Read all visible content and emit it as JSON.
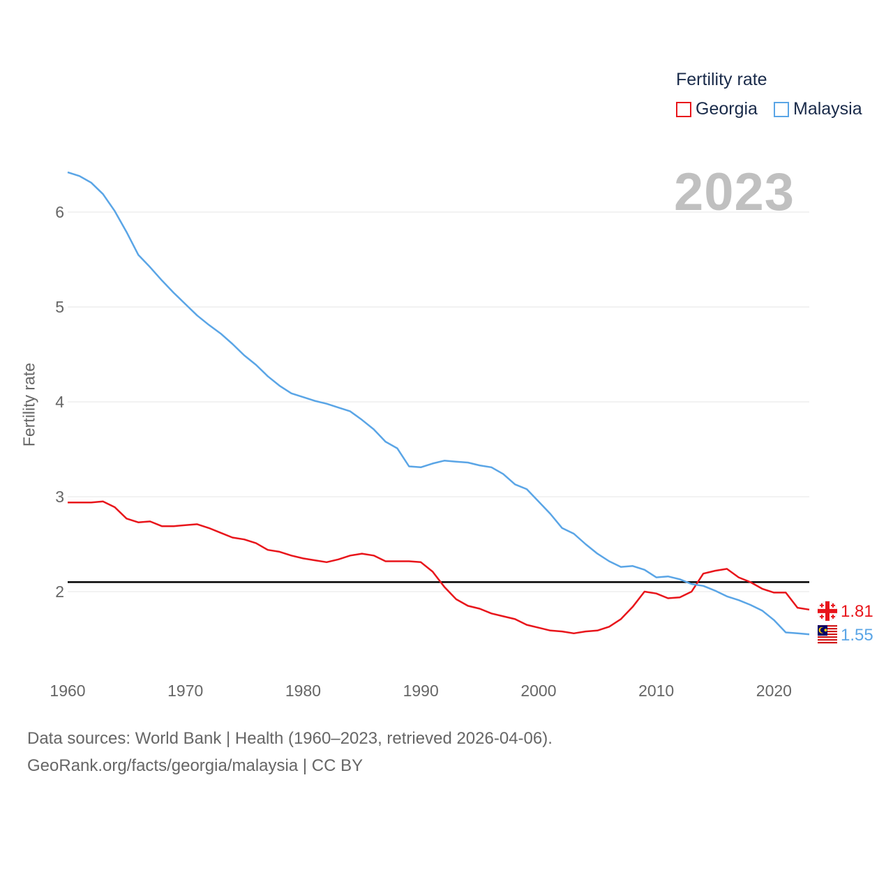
{
  "legend": {
    "title": "Fertility rate",
    "items": [
      {
        "label": "Georgia",
        "color": "#e8151b"
      },
      {
        "label": "Malaysia",
        "color": "#5aa5e6"
      }
    ]
  },
  "year_label": "2023",
  "footer": {
    "line1": "Data sources: World Bank | Health (1960–2023, retrieved 2026-04-06).",
    "line2": "GeoRank.org/facts/georgia/malaysia | CC BY"
  },
  "chart_data": {
    "type": "line",
    "title": "Fertility rate",
    "xlabel": "",
    "ylabel": "Fertility rate",
    "xlim": [
      1960,
      2023
    ],
    "ylim": [
      1.3,
      6.5
    ],
    "x_ticks": [
      "1960",
      "1970",
      "1980",
      "1990",
      "2000",
      "2010",
      "2020"
    ],
    "y_ticks": [
      "2",
      "3",
      "4",
      "5",
      "6"
    ],
    "grid": true,
    "reference_line": {
      "y": 2.1,
      "color": "#000000"
    },
    "x": [
      1960,
      1961,
      1962,
      1963,
      1964,
      1965,
      1966,
      1967,
      1968,
      1969,
      1970,
      1971,
      1972,
      1973,
      1974,
      1975,
      1976,
      1977,
      1978,
      1979,
      1980,
      1981,
      1982,
      1983,
      1984,
      1985,
      1986,
      1987,
      1988,
      1989,
      1990,
      1991,
      1992,
      1993,
      1994,
      1995,
      1996,
      1997,
      1998,
      1999,
      2000,
      2001,
      2002,
      2003,
      2004,
      2005,
      2006,
      2007,
      2008,
      2009,
      2010,
      2011,
      2012,
      2013,
      2014,
      2015,
      2016,
      2017,
      2018,
      2019,
      2020,
      2021,
      2022,
      2023
    ],
    "series": [
      {
        "name": "Georgia",
        "color": "#e8151b",
        "end_label": "1.81",
        "values": [
          2.94,
          2.94,
          2.94,
          2.95,
          2.89,
          2.77,
          2.73,
          2.74,
          2.69,
          2.69,
          2.7,
          2.71,
          2.67,
          2.62,
          2.57,
          2.55,
          2.51,
          2.44,
          2.42,
          2.38,
          2.35,
          2.33,
          2.31,
          2.34,
          2.38,
          2.4,
          2.38,
          2.32,
          2.32,
          2.32,
          2.31,
          2.21,
          2.05,
          1.92,
          1.85,
          1.82,
          1.77,
          1.74,
          1.71,
          1.65,
          1.62,
          1.59,
          1.58,
          1.56,
          1.58,
          1.59,
          1.63,
          1.71,
          1.84,
          2.0,
          1.98,
          1.93,
          1.94,
          2.0,
          2.19,
          2.22,
          2.24,
          2.15,
          2.1,
          2.03,
          1.99,
          1.99,
          1.83,
          1.81
        ]
      },
      {
        "name": "Malaysia",
        "color": "#5aa5e6",
        "end_label": "1.55",
        "values": [
          6.42,
          6.38,
          6.31,
          6.19,
          6.01,
          5.79,
          5.55,
          5.42,
          5.28,
          5.15,
          5.03,
          4.91,
          4.81,
          4.72,
          4.61,
          4.49,
          4.39,
          4.27,
          4.17,
          4.09,
          4.05,
          4.01,
          3.98,
          3.94,
          3.9,
          3.81,
          3.71,
          3.58,
          3.51,
          3.32,
          3.31,
          3.35,
          3.38,
          3.37,
          3.36,
          3.33,
          3.31,
          3.24,
          3.13,
          3.08,
          2.95,
          2.82,
          2.67,
          2.61,
          2.5,
          2.4,
          2.32,
          2.26,
          2.27,
          2.23,
          2.15,
          2.16,
          2.13,
          2.08,
          2.06,
          2.01,
          1.95,
          1.91,
          1.86,
          1.8,
          1.7,
          1.57,
          1.56,
          1.55
        ]
      }
    ]
  }
}
